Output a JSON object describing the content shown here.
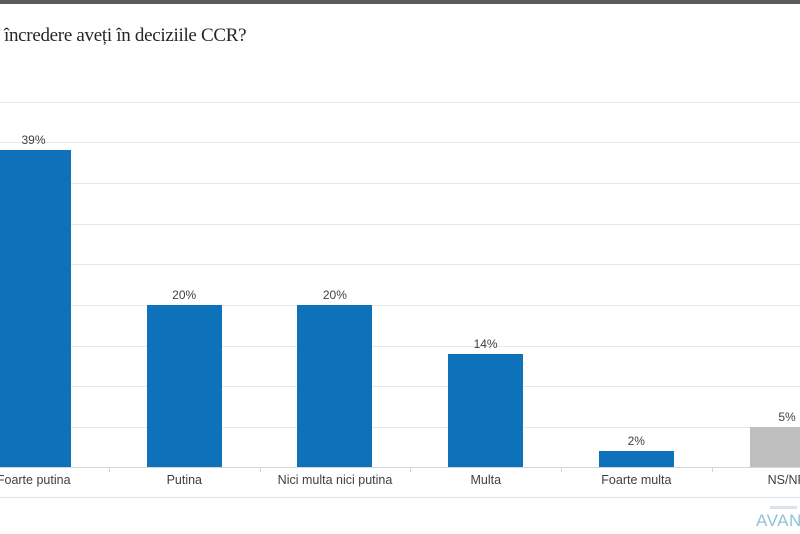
{
  "chart_data": {
    "type": "bar",
    "title": "încredere aveți în deciziile CCR?",
    "categories": [
      "Foarte putina",
      "Putina",
      "Nici multa nici putina",
      "Multa",
      "Foarte multa",
      "NS/NR"
    ],
    "values": [
      39,
      20,
      20,
      14,
      2,
      5
    ],
    "labels": [
      "39%",
      "20%",
      "20%",
      "14%",
      "2%",
      "5%"
    ],
    "bar_colors": [
      "#0d72ba",
      "#0d72ba",
      "#0d72ba",
      "#0d72ba",
      "#0d72ba",
      "#bfbfbf"
    ],
    "xlabel": "",
    "ylabel": "",
    "ylim": [
      0,
      45
    ],
    "gridline_step": 5,
    "grid": true,
    "legend": "none",
    "notes": "leftmost bar and rightmost bar/labels are cropped by the image edges"
  },
  "colors": {
    "bar_blue": "#0d72ba",
    "bar_gray": "#bfbfbf",
    "logo_blue": "#8fc3d9"
  },
  "logo": {
    "text": "AVANG"
  }
}
